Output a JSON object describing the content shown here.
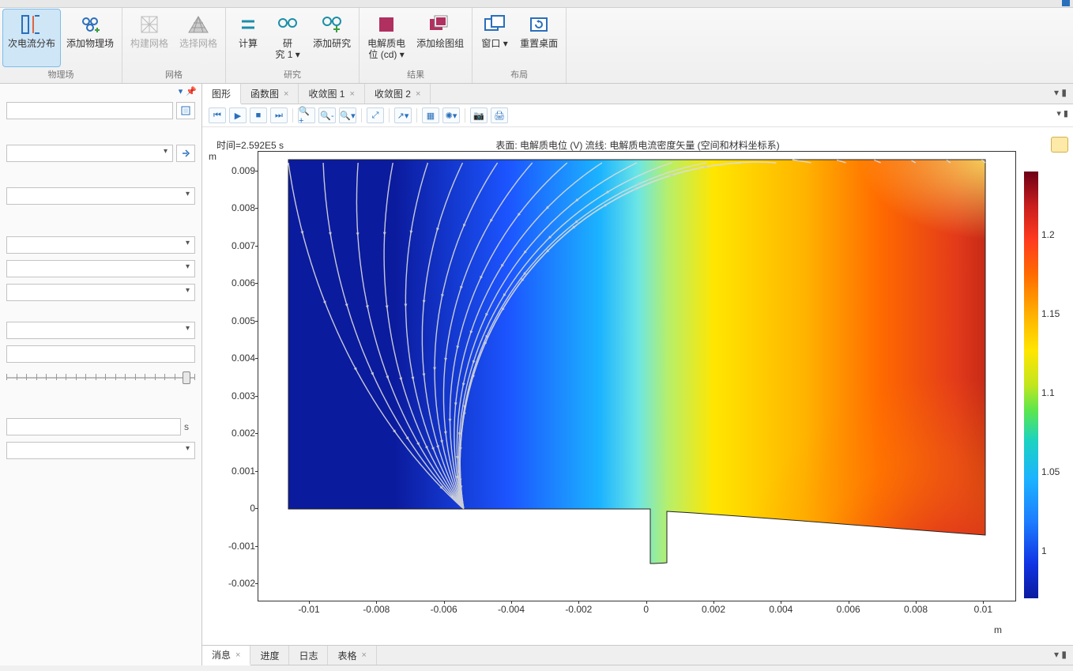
{
  "ribbon": {
    "groups": [
      {
        "name": "物理场",
        "buttons": [
          {
            "id": "current-dist",
            "label": "次电流分布",
            "selected": true
          },
          {
            "id": "add-physics",
            "label": "添加物理场"
          }
        ]
      },
      {
        "name": "网格",
        "buttons": [
          {
            "id": "build-mesh",
            "label": "构建网格",
            "disabled": true
          },
          {
            "id": "select-mesh",
            "label": "选择网格",
            "disabled": true
          }
        ]
      },
      {
        "name": "研究",
        "buttons": [
          {
            "id": "compute",
            "label": "计算"
          },
          {
            "id": "study1",
            "label": "研\n究 1 ▾"
          },
          {
            "id": "add-study",
            "label": "添加研究"
          }
        ]
      },
      {
        "name": "结果",
        "buttons": [
          {
            "id": "electrolyte-pot",
            "label": "电解质电\n位 (cd) ▾"
          },
          {
            "id": "add-plotgrp",
            "label": "添加绘图组"
          }
        ]
      },
      {
        "name": "布局",
        "buttons": [
          {
            "id": "window",
            "label": "窗口 ▾"
          },
          {
            "id": "reset-desktop",
            "label": "重置桌面"
          }
        ]
      }
    ]
  },
  "left_panel": {
    "header_glyphs": [
      "▾",
      "▮"
    ],
    "unit_s": "s"
  },
  "graphics": {
    "tabs": [
      {
        "id": "graphics",
        "label": "图形",
        "closable": false,
        "active": true
      },
      {
        "id": "func-plot",
        "label": "函数图",
        "closable": true
      },
      {
        "id": "conv1",
        "label": "收敛图 1",
        "closable": true
      },
      {
        "id": "conv2",
        "label": "收敛图 2",
        "closable": true
      }
    ],
    "time_label": "时间=2.592E5 s",
    "title": "表面: 电解质电位 (V)  流线: 电解质电流密度矢量    (空间和材料坐标系)",
    "y_unit": "m",
    "x_unit": "m",
    "y_ticks": [
      {
        "v": "0.009"
      },
      {
        "v": "0.008"
      },
      {
        "v": "0.007"
      },
      {
        "v": "0.006"
      },
      {
        "v": "0.005"
      },
      {
        "v": "0.004"
      },
      {
        "v": "0.003"
      },
      {
        "v": "0.002"
      },
      {
        "v": "0.001"
      },
      {
        "v": "0"
      },
      {
        "v": "-0.001"
      },
      {
        "v": "-0.002"
      }
    ],
    "x_ticks": [
      {
        "v": "-0.01"
      },
      {
        "v": "-0.008"
      },
      {
        "v": "-0.006"
      },
      {
        "v": "-0.004"
      },
      {
        "v": "-0.002"
      },
      {
        "v": "0"
      },
      {
        "v": "0.002"
      },
      {
        "v": "0.004"
      },
      {
        "v": "0.006"
      },
      {
        "v": "0.008"
      },
      {
        "v": "0.01"
      }
    ],
    "x_range": [
      -0.0115,
      0.011
    ],
    "y_range": [
      -0.0025,
      0.0095
    ],
    "colorbar_ticks": [
      {
        "v": "1.2"
      },
      {
        "v": "1.15"
      },
      {
        "v": "1.1"
      },
      {
        "v": "1.05"
      },
      {
        "v": "1"
      }
    ],
    "colorbar_range": [
      0.97,
      1.24
    ],
    "surface_colors": {
      "left_deep": "#0b1b9e",
      "blue_high": "#1c7dff",
      "cyan": "#1cd3ff",
      "yellow": "#ffe600",
      "orange": "#ff8a00",
      "red": "#e33a1a",
      "dark_red": "#8e1414"
    },
    "streamline_color": "#d7d7d7"
  },
  "bottom_tabs": [
    {
      "id": "messages",
      "label": "消息",
      "closable": true,
      "active": true
    },
    {
      "id": "progress",
      "label": "进度"
    },
    {
      "id": "log",
      "label": "日志"
    },
    {
      "id": "table",
      "label": "表格",
      "closable": true
    }
  ]
}
